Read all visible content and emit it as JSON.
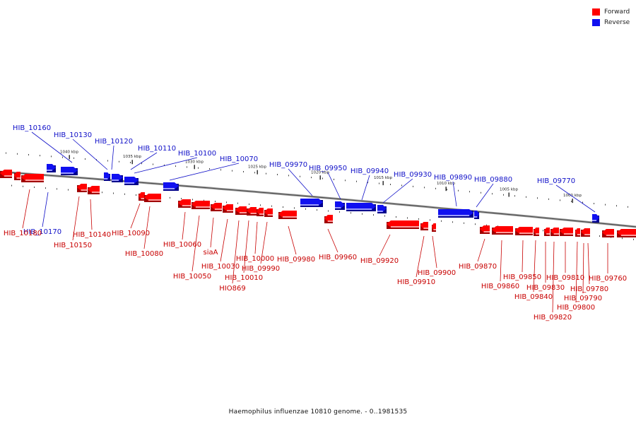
{
  "caption": "Haemophilus influenzae 10810 genome. - 0..1981535",
  "colors": {
    "forward": "#ff0000",
    "reverse": "#1010f0",
    "backbone": "#9a9a9a"
  },
  "legend": [
    {
      "key": "forward",
      "label": "Forward"
    },
    {
      "key": "reverse",
      "label": "Reverse"
    }
  ],
  "ticks": [
    {
      "label": "1040 kbp",
      "kbp": 1040
    },
    {
      "label": "1035 kbp",
      "kbp": 1035
    },
    {
      "label": "1030 kbp",
      "kbp": 1030
    },
    {
      "label": "1025 kbp",
      "kbp": 1025
    },
    {
      "label": "1020 kbp",
      "kbp": 1020
    },
    {
      "label": "1015 kbp",
      "kbp": 1015
    },
    {
      "label": "1010 kbp",
      "kbp": 1010
    },
    {
      "label": "1005 kbp",
      "kbp": 1005
    },
    {
      "label": "1000 kbp",
      "kbp": 1000
    }
  ],
  "genes_reverse": [
    "HIB_10160",
    "HIB_10130",
    "HIB_10120",
    "HIB_10110",
    "HIB_10100",
    "HIB_10070",
    "HIB_09970",
    "HIB_09950",
    "HIB_09940",
    "HIB_09930",
    "HIB_09890",
    "HIB_09880",
    "HIB_09770",
    "HIB_10170"
  ],
  "genes_forward": [
    "HIB_10180",
    "HIB_10150",
    "HIB_10140",
    "HIB_10090",
    "HIB_10080",
    "HIB_10060",
    "HIB_10050",
    "siaA",
    "HIB_10030",
    "HIB_10010",
    "HIO869",
    "HIB_10000",
    "HIB_09990",
    "HIB_09980",
    "HIB_09960",
    "HIB_09920",
    "HIB_09910",
    "HIB_09900",
    "HIB_09870",
    "HIB_09860",
    "HIB_09850",
    "HIB_09840",
    "HIB_09830",
    "HIB_09820",
    "HIB_09810",
    "HIB_09800",
    "HIB_09790",
    "HIB_09780",
    "HIB_09760"
  ]
}
